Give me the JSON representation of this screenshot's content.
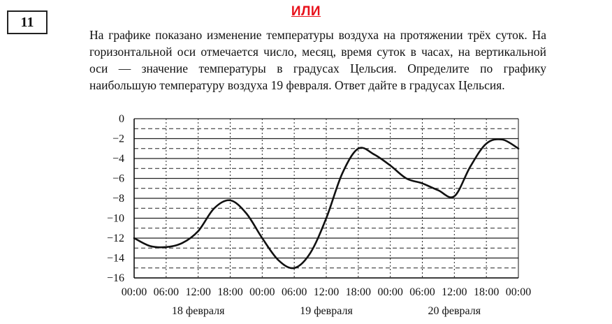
{
  "task": {
    "number": "11",
    "or_label": "ИЛИ",
    "text": "На графике показано изменение температуры воздуха на протяжении трёх суток. На горизонтальной оси отмечается число, месяц, время суток в часах, на вертикальной оси — значение температуры в градусах Цельсия. Определите по графику наибольшую температуру воздуха 19 февраля. Ответ дайте в градусах Цельсия."
  },
  "colors": {
    "ili": "#e8101a",
    "ink": "#111111"
  },
  "chart_data": {
    "type": "line",
    "title": "",
    "xlabel": "",
    "ylabel": "",
    "ylim": [
      -16,
      0
    ],
    "yticks": [
      "0",
      "−2",
      "−4",
      "−6",
      "−8",
      "−10",
      "−12",
      "−14",
      "−16"
    ],
    "xticks": [
      "00:00",
      "06:00",
      "12:00",
      "18:00",
      "00:00",
      "06:00",
      "12:00",
      "18:00",
      "00:00",
      "06:00",
      "12:00",
      "18:00",
      "00:00"
    ],
    "day_labels": [
      "18 февраля",
      "19 февраля",
      "20 февраля"
    ],
    "grid": true,
    "series": [
      {
        "x": [
          0,
          3,
          6,
          9,
          12,
          15,
          18,
          21,
          24,
          27,
          30,
          33,
          36,
          39,
          42,
          45,
          48,
          51,
          54,
          57,
          60,
          63,
          66,
          69,
          72
        ],
        "values": [
          -12,
          -12.8,
          -12.9,
          -12.5,
          -11.3,
          -9,
          -8.2,
          -9.5,
          -12,
          -14.2,
          -15,
          -13.5,
          -10,
          -5.5,
          -3,
          -3.6,
          -4.7,
          -6,
          -6.5,
          -7.2,
          -7.8,
          -4.8,
          -2.5,
          -2.1,
          -3
        ]
      }
    ]
  }
}
